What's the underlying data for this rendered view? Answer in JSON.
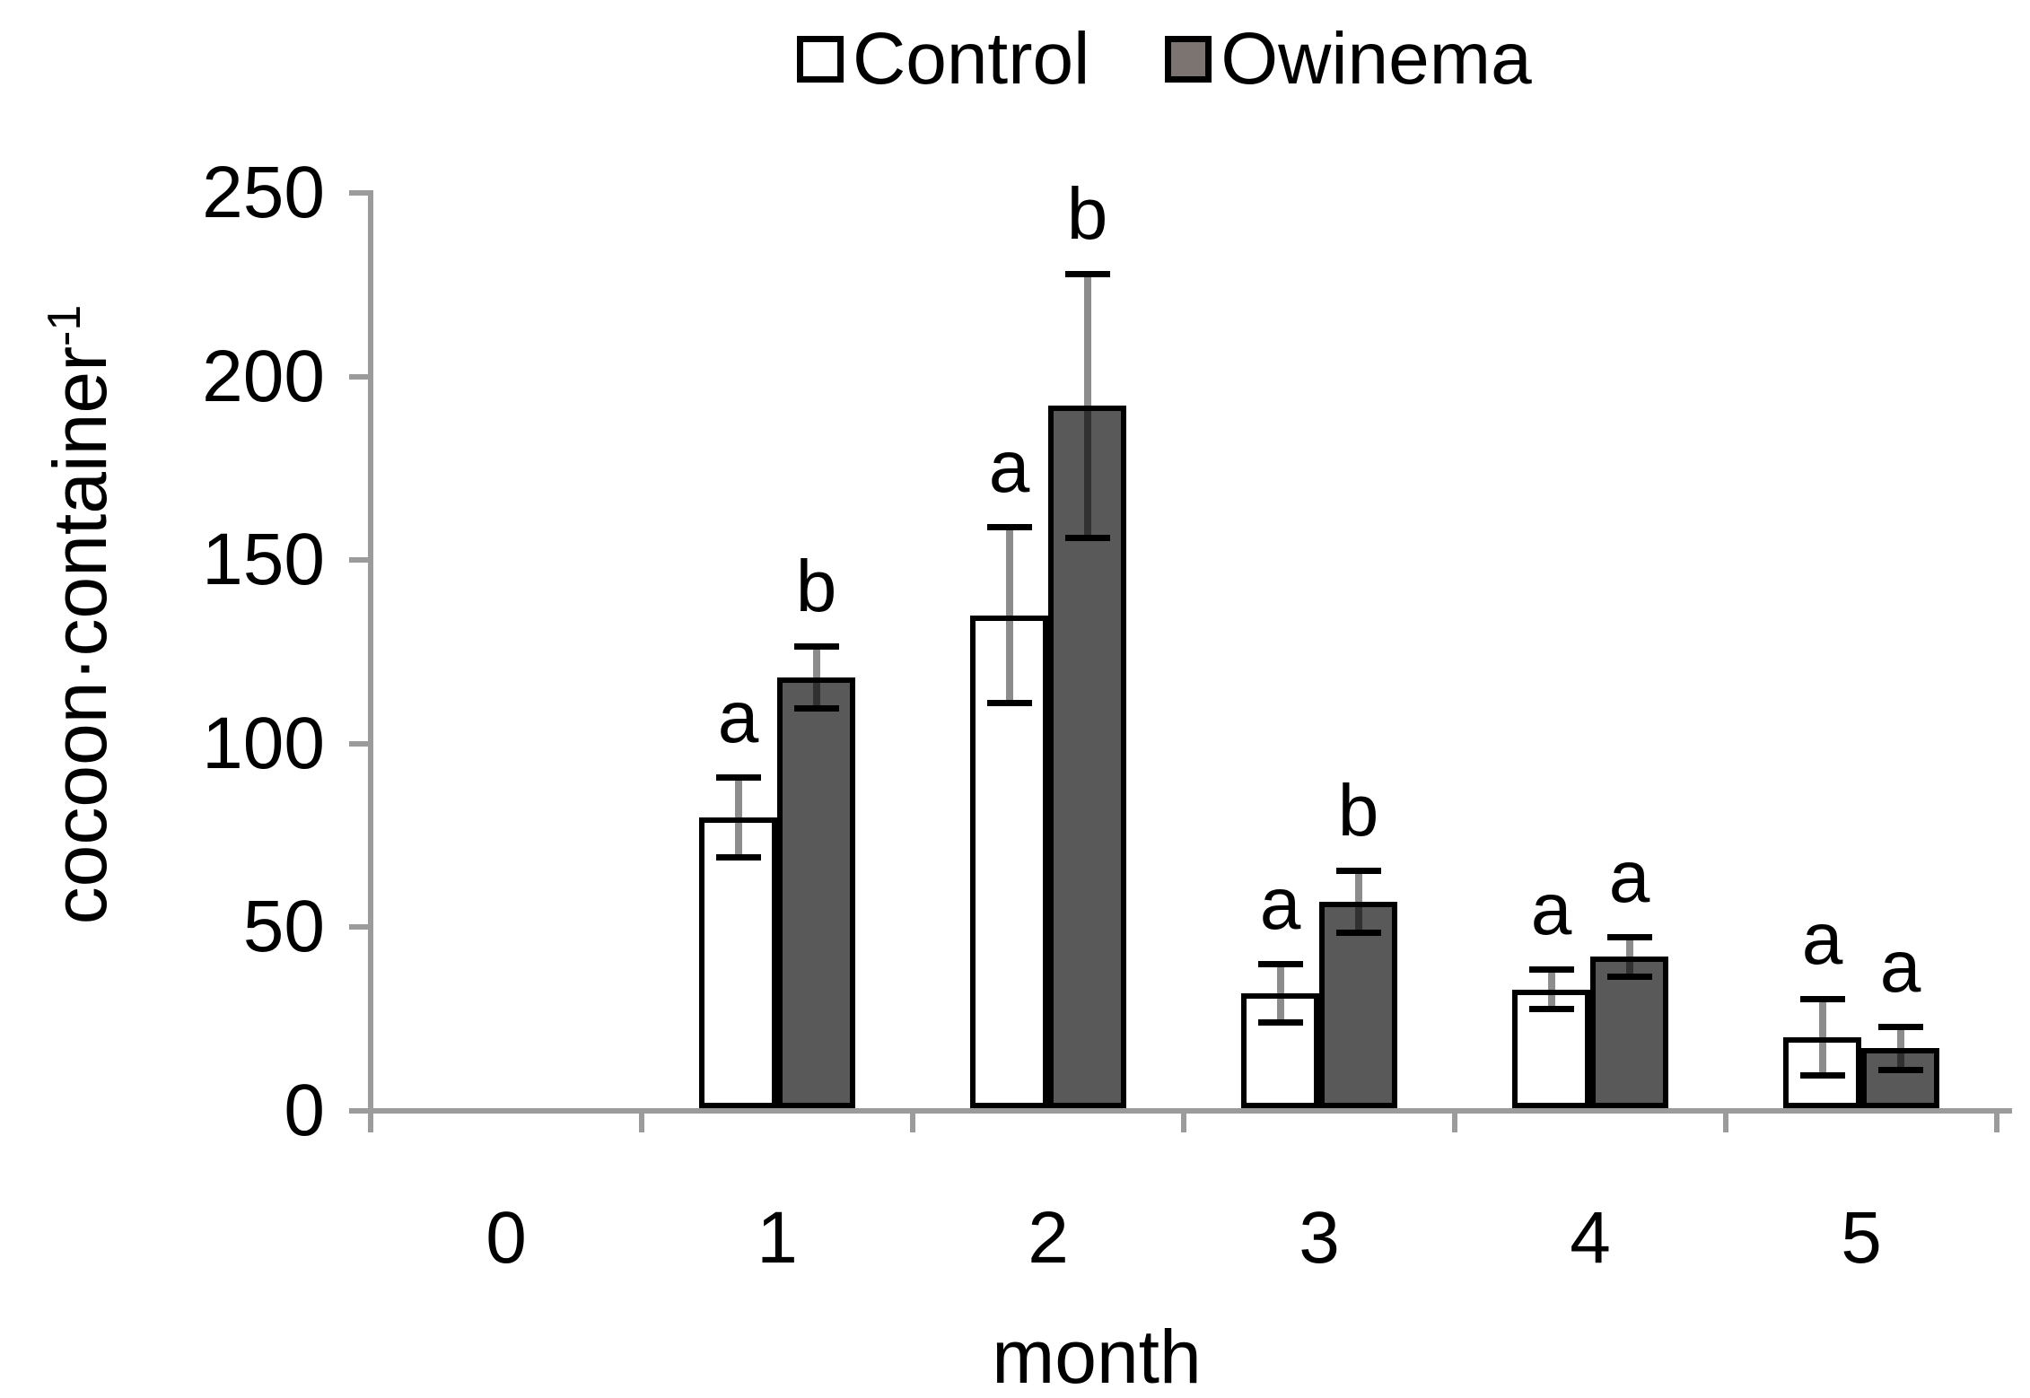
{
  "legend": {
    "items": [
      {
        "label": "Control",
        "fill": "#ffffff"
      },
      {
        "label": "Owinema",
        "fill": "#7b7470"
      }
    ]
  },
  "y_axis": {
    "label": "cocoon·container",
    "label_sup": "-1",
    "ticks": [
      "0",
      "50",
      "100",
      "150",
      "200",
      "250"
    ]
  },
  "x_axis": {
    "label": "month",
    "ticks": [
      "0",
      "1",
      "2",
      "3",
      "4",
      "5"
    ]
  },
  "chart_data": {
    "type": "bar",
    "title": "",
    "categories": [
      "0",
      "1",
      "2",
      "3",
      "4",
      "5"
    ],
    "series": [
      {
        "name": "Control",
        "fill": "#ffffff",
        "values": [
          0,
          80,
          135,
          32,
          33,
          20
        ],
        "errors": [
          0,
          11,
          24,
          8,
          5.5,
          10.5
        ],
        "sig_letters": [
          "",
          "a",
          "a",
          "a",
          "a",
          "a"
        ]
      },
      {
        "name": "Owinema",
        "fill": "#595959",
        "values": [
          0,
          118,
          192,
          57,
          42,
          17
        ],
        "errors": [
          0,
          8.5,
          36,
          8.5,
          5.5,
          6
        ],
        "sig_letters": [
          "",
          "b",
          "b",
          "b",
          "a",
          "a"
        ]
      }
    ],
    "xlabel": "month",
    "ylabel": "cocoon·container⁻¹",
    "ylim": [
      0,
      250
    ],
    "ytick_step": 50,
    "grid": false,
    "legend_position": "top",
    "error_bars": true
  },
  "colors": {
    "axis": "#9b9b9b",
    "bar_border": "#000000",
    "owinema_fill": "#595959",
    "control_fill": "#ffffff",
    "error_cap": "#000000",
    "text": "#000000"
  }
}
